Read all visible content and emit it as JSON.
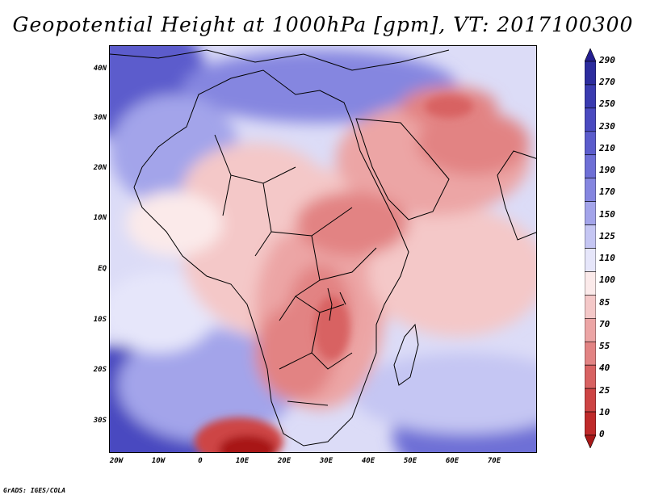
{
  "title": "Geopotential Height at 1000hPa [gpm], VT: 2017100300",
  "footer": "GrADS: IGES/COLA",
  "map": {
    "lat_labels": [
      "40N",
      "30N",
      "20N",
      "10N",
      "EQ",
      "10S",
      "20S",
      "30S"
    ],
    "lon_labels": [
      "20W",
      "10W",
      "0",
      "10E",
      "20E",
      "30E",
      "40E",
      "50E",
      "60E",
      "70E"
    ],
    "lon_range": [
      -22,
      80
    ],
    "lat_range": [
      -36,
      45
    ]
  },
  "colorbar": {
    "labels": [
      "290",
      "270",
      "250",
      "230",
      "210",
      "190",
      "170",
      "150",
      "125",
      "110",
      "100",
      "85",
      "70",
      "55",
      "40",
      "25",
      "10",
      "0"
    ],
    "colors": [
      "#241e90",
      "#2c2c9e",
      "#3a3bb0",
      "#4a4ac0",
      "#5b5ccc",
      "#6e6fd6",
      "#8586e0",
      "#a3a4ea",
      "#c5c6f3",
      "#e6e6fa",
      "#fbeaea",
      "#f4c8c8",
      "#eca5a5",
      "#e28383",
      "#d86262",
      "#cd4444",
      "#bf2a2a",
      "#a81818"
    ]
  },
  "legend_description": "Filled contours of 1000hPa geopotential height over Africa, the Middle East and surrounding oceans; blue = high height, red = low height"
}
